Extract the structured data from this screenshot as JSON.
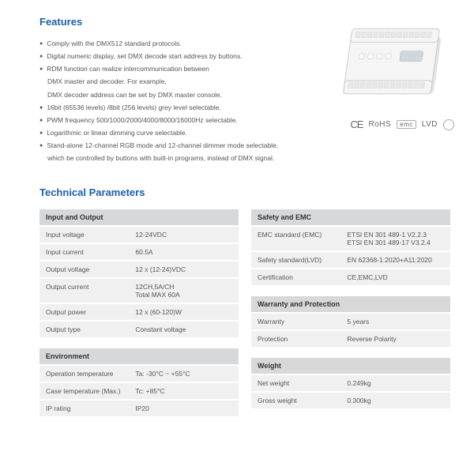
{
  "sections": {
    "features_title": "Features",
    "tech_title": "Technical Parameters"
  },
  "features": [
    "Comply with the DMX512 standard protocols.",
    "Digital numeric display, set DMX decode start address by buttons.",
    "RDM function can realize intercommunication between",
    "DMX master and decoder. For example,",
    "DMX decoder address can be set by DMX master console.",
    "16bit (65536 levels) /8bit (256 levels) grey level selectable.",
    "PWM frequency 500/1000/2000/4000/8000/16000Hz selectable.",
    "Logarithmic or linear dimming curve selectable.",
    "Stand-alone 12-channel RGB mode and 12-channel dimmer mode selectable,",
    "which be controlled by buttons with built-in programs, instead of DMX signal."
  ],
  "feature_indent_flags": [
    false,
    false,
    false,
    true,
    true,
    false,
    false,
    false,
    false,
    true
  ],
  "cert_marks": {
    "ce": "CE",
    "rohs": "RoHS",
    "emc": "emc",
    "lvd": "LVD",
    "extra": " "
  },
  "tables": {
    "io": {
      "title": "Input and Output",
      "rows": [
        [
          "Input voltage",
          "12-24VDC"
        ],
        [
          "Input current",
          "60.5A"
        ],
        [
          "Output voltage",
          "12 x (12-24)VDC"
        ],
        [
          "Output current",
          "12CH,5A/CH\nTotal MAX 60A"
        ],
        [
          "Output power",
          "12 x (60-120)W"
        ],
        [
          "Output type",
          "Constant voltage"
        ]
      ]
    },
    "env": {
      "title": "Environment",
      "rows": [
        [
          "Operation temperature",
          "Ta: -30°C ~ +55°C"
        ],
        [
          "Case temperature (Max.)",
          "Tc: +85°C"
        ],
        [
          "IP rating",
          "IP20"
        ]
      ]
    },
    "safety": {
      "title": "Safety and EMC",
      "rows": [
        [
          "EMC standard (EMC)",
          "ETSI EN 301 489-1 V2.2.3\nETSI EN 301 489-17 V3.2.4"
        ],
        [
          "Safety standard(LVD)",
          "EN 62368-1:2020+A11:2020"
        ],
        [
          "Certification",
          "CE,EMC,LVD"
        ]
      ]
    },
    "warranty": {
      "title": "Warranty and Protection",
      "rows": [
        [
          "Warranty",
          "5 years"
        ],
        [
          "Protection",
          "Reverse Polarity"
        ]
      ]
    },
    "weight": {
      "title": "Weight",
      "rows": [
        [
          "Net weight",
          "0.249kg"
        ],
        [
          "Gross weight",
          "0.300kg"
        ]
      ]
    }
  },
  "colors": {
    "heading": "#1e5fa8",
    "table_header_bg": "#d6d8da",
    "table_cell_bg": "#f0f0f0",
    "text": "#555555"
  }
}
